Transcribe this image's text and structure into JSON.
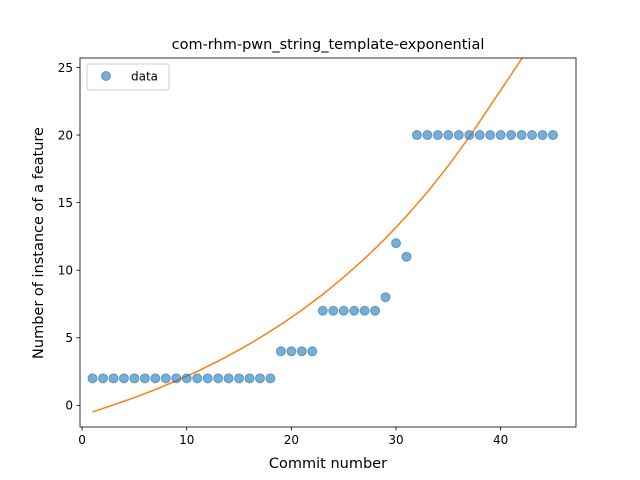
{
  "chart_data": {
    "type": "scatter",
    "title": "com-rhm-pwn_string_template-exponential",
    "xlabel": "Commit number",
    "ylabel": "Number of instance of a feature",
    "xlim": [
      -0.2,
      47.2
    ],
    "ylim": [
      -1.6,
      25.7
    ],
    "xticks": [
      0,
      10,
      20,
      30,
      40
    ],
    "yticks": [
      0,
      5,
      10,
      15,
      20,
      25
    ],
    "grid": false,
    "legend": {
      "placement": "top-left",
      "entries": [
        "data"
      ]
    },
    "series": [
      {
        "name": "data",
        "kind": "scatter",
        "color": "#1f77b4",
        "x": [
          1,
          2,
          3,
          4,
          5,
          6,
          7,
          8,
          9,
          10,
          11,
          12,
          13,
          14,
          15,
          16,
          17,
          18,
          19,
          20,
          21,
          22,
          23,
          24,
          25,
          26,
          27,
          28,
          29,
          30,
          31,
          32,
          33,
          34,
          35,
          36,
          37,
          38,
          39,
          40,
          41,
          42,
          43,
          44,
          45
        ],
        "y": [
          2,
          2,
          2,
          2,
          2,
          2,
          2,
          2,
          2,
          2,
          2,
          2,
          2,
          2,
          2,
          2,
          2,
          2,
          4,
          4,
          4,
          4,
          7,
          7,
          7,
          7,
          7,
          7,
          8,
          12,
          11,
          20,
          20,
          20,
          20,
          20,
          20,
          20,
          20,
          20,
          20,
          20,
          20,
          20,
          20
        ]
      },
      {
        "kind": "line",
        "color": "#ff7f0e",
        "x": [
          1,
          3,
          5,
          7,
          9,
          11,
          13,
          15,
          17,
          19,
          21,
          23,
          25,
          27,
          29,
          31,
          33,
          35,
          37,
          39,
          41,
          43,
          45
        ],
        "y": [
          -0.48,
          0.03,
          0.58,
          1.17,
          1.82,
          2.51,
          3.27,
          4.1,
          5.0,
          5.98,
          7.05,
          8.21,
          9.48,
          10.86,
          12.36,
          14.0,
          15.78,
          17.73,
          19.85,
          22.15,
          24.47,
          26.8,
          29.2
        ]
      }
    ]
  }
}
